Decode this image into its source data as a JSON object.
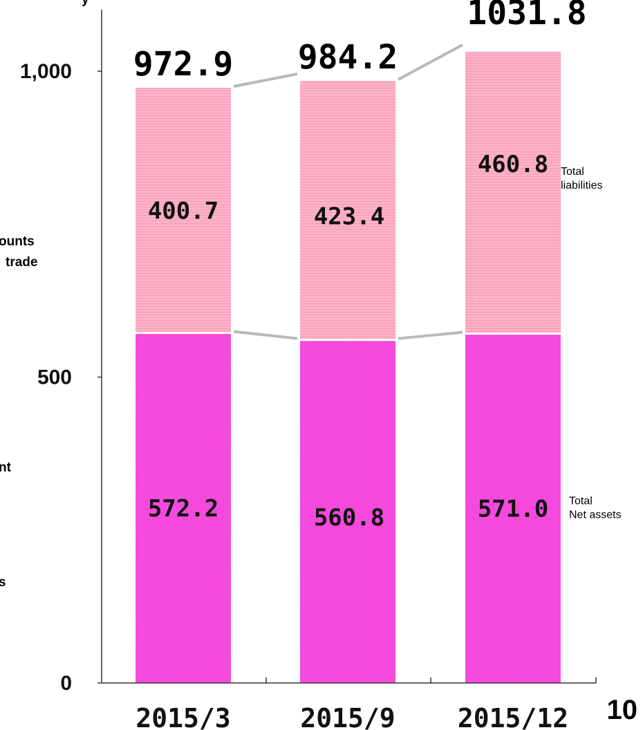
{
  "chart_data": {
    "type": "bar",
    "stacked": true,
    "categories": [
      "2015/3",
      "2015/9",
      "2015/12"
    ],
    "series": [
      {
        "name": "Total\nNet assets",
        "values": [
          572.2,
          560.8,
          571.0
        ],
        "labels": [
          "572.2",
          "560.8",
          "571.0"
        ]
      },
      {
        "name": "Total\nliabilities",
        "values": [
          400.7,
          423.4,
          460.8
        ],
        "labels": [
          "400.7",
          "423.4",
          "460.8"
        ]
      }
    ],
    "totals": [
      972.9,
      984.2,
      1031.8
    ],
    "total_labels": [
      "972.9",
      "984.2",
      "1031.8"
    ],
    "yticks": [
      0,
      500,
      1000
    ],
    "ytick_labels": [
      "0",
      "500",
      "1,000"
    ],
    "ylim": [
      0,
      1000
    ],
    "title": "",
    "xlabel": "",
    "ylabel": "",
    "legend": "right-of-last-bar",
    "grid": false
  },
  "left_edge_text": [
    "ounts",
    "trade",
    "nt",
    "s"
  ],
  "top_edge_text": "y",
  "page_number": "10",
  "colors": {
    "net_assets": "#f542dc",
    "liabilities": "#fcb3c8",
    "connector": "#b8b8b8",
    "axis": "#333333"
  }
}
